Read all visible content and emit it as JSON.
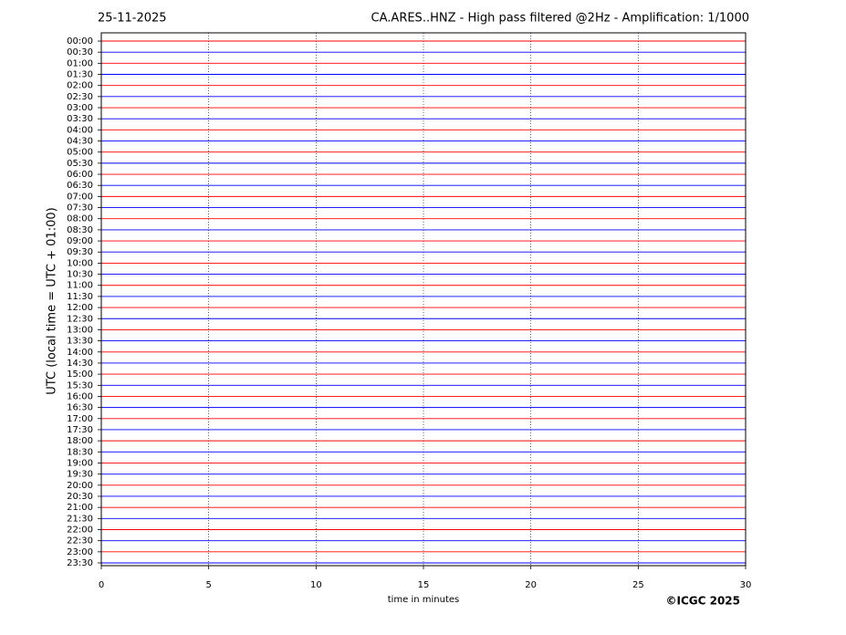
{
  "chart_data": {
    "type": "helicorder",
    "title_left": "25-11-2025",
    "title": "CA.ARES..HNZ - High pass filtered @2Hz - Amplification: 1/1000",
    "x_label": "time in minutes",
    "y_label": "UTC (local time = UTC + 01:00)",
    "copyright": "©ICGC 2025",
    "categories": [
      "00:00",
      "00:30",
      "01:00",
      "01:30",
      "02:00",
      "02:30",
      "03:00",
      "03:30",
      "04:00",
      "04:30",
      "05:00",
      "05:30",
      "06:00",
      "06:30",
      "07:00",
      "07:30",
      "08:00",
      "08:30",
      "09:00",
      "09:30",
      "10:00",
      "10:30",
      "11:00",
      "11:30",
      "12:00",
      "12:30",
      "13:00",
      "13:30",
      "14:00",
      "14:30",
      "15:00",
      "15:30",
      "16:00",
      "16:30",
      "17:00",
      "17:30",
      "18:00",
      "18:30",
      "19:00",
      "19:30",
      "20:00",
      "20:30",
      "21:00",
      "21:30",
      "22:00",
      "22:30",
      "23:00",
      "23:30"
    ],
    "trace_colors": [
      "#ff0000",
      "#0000ff"
    ],
    "xlim": [
      0,
      30
    ],
    "xticks": [
      0,
      5,
      10,
      15,
      20,
      25,
      30
    ],
    "grid": true
  }
}
